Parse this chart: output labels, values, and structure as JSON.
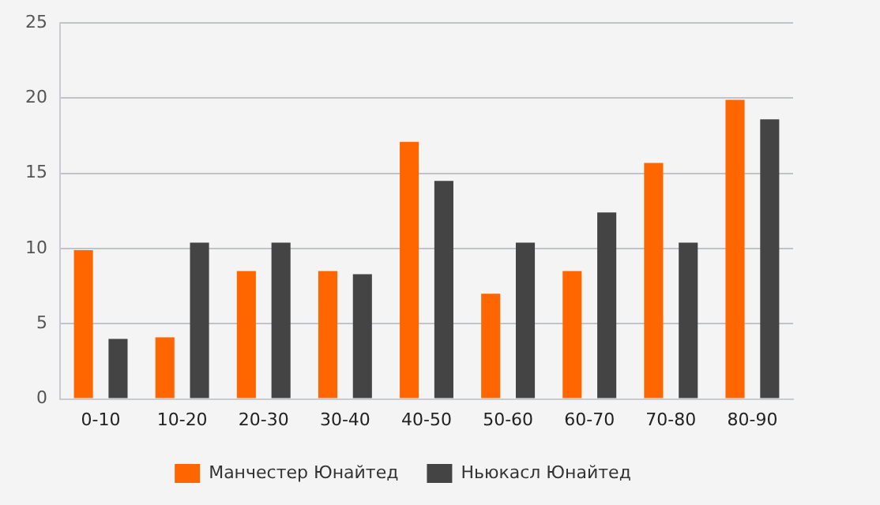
{
  "chart_data": {
    "type": "bar",
    "categories": [
      "0-10",
      "10-20",
      "20-30",
      "30-40",
      "40-50",
      "50-60",
      "60-70",
      "70-80",
      "80-90"
    ],
    "series": [
      {
        "name": "Манчестер Юнайтед",
        "color": "#ff6600",
        "values": [
          9.9,
          4.1,
          8.5,
          8.5,
          17.1,
          7.0,
          8.5,
          15.7,
          19.9
        ]
      },
      {
        "name": "Ньюкасл Юнайтед",
        "color": "#444444",
        "values": [
          4.0,
          10.4,
          10.4,
          8.3,
          14.5,
          10.4,
          12.4,
          10.4,
          18.6
        ]
      }
    ],
    "ylim": [
      0,
      25
    ],
    "yticks": [
      0,
      5,
      10,
      15,
      20,
      25
    ],
    "grid": "y",
    "legend": "bottom"
  }
}
